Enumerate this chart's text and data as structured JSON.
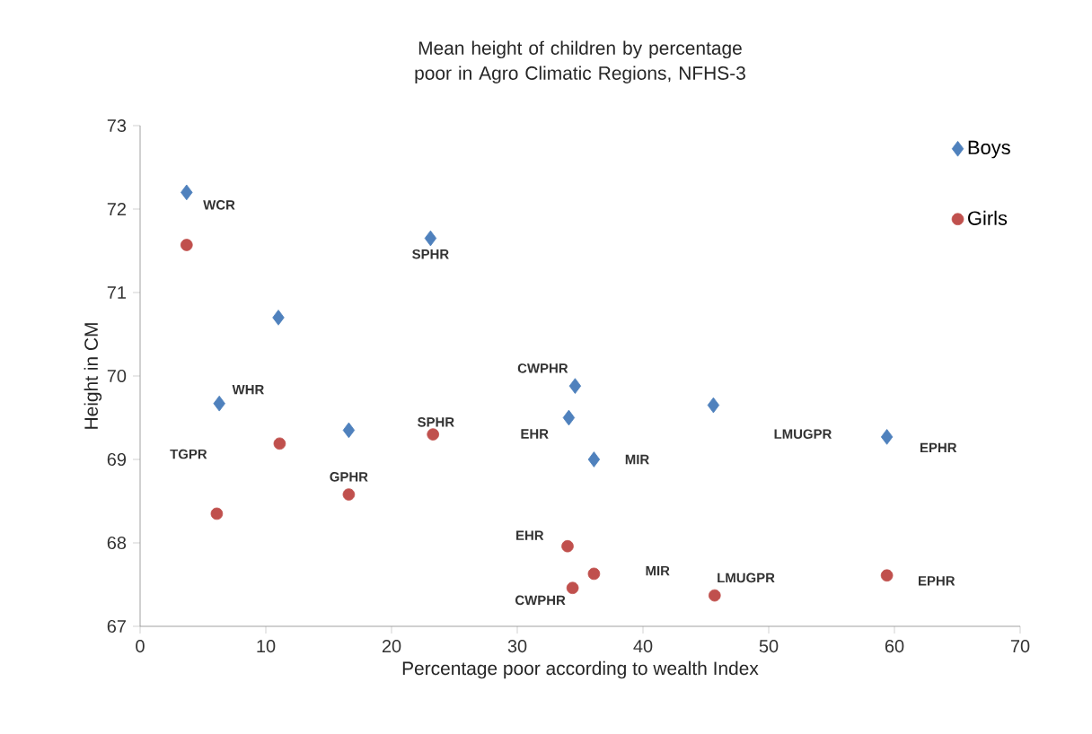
{
  "chart_data": {
    "type": "scatter",
    "title": "Mean height of children by percentage  poor in Agro Climatic Regions, NFHS-3",
    "xlabel": "Percentage poor according to  wealth Index",
    "ylabel": "Height in CM",
    "xlim": [
      0,
      70
    ],
    "xticks": [
      0,
      10,
      20,
      30,
      40,
      50,
      60,
      70
    ],
    "ylim": [
      67,
      73
    ],
    "yticks": [
      67,
      68,
      69,
      70,
      71,
      72,
      73
    ],
    "grid": false,
    "legend": "top right",
    "series": [
      {
        "name": "Boys",
        "color": "#4f81bd",
        "marker": "diamond",
        "x": [
          3.7,
          23.1,
          11.0,
          6.3,
          16.6,
          34.6,
          34.1,
          36.1,
          45.6,
          59.4
        ],
        "values": [
          72.2,
          71.65,
          70.7,
          69.67,
          69.35,
          69.88,
          69.5,
          69.0,
          69.65,
          69.27
        ]
      },
      {
        "name": "Girls",
        "color": "#c0504d",
        "marker": "circle",
        "x": [
          3.7,
          11.1,
          23.3,
          16.6,
          6.1,
          34.0,
          36.1,
          34.4,
          45.7,
          59.4
        ],
        "values": [
          71.57,
          69.19,
          69.3,
          68.58,
          68.35,
          67.96,
          67.63,
          67.46,
          67.37,
          67.61
        ]
      }
    ],
    "annotations": [
      {
        "text": "WCR",
        "x": 3.7,
        "y": 72.2
      },
      {
        "text": "SPHR",
        "x": 23.1,
        "y": 71.65
      },
      {
        "text": "WHR",
        "x": 6.3,
        "y": 69.67
      },
      "TGPR",
      {
        "text": "GPHR",
        "x": 16.6,
        "y": 68.58
      },
      {
        "text": "SPHR",
        "x": 23.3,
        "y": 69.3
      },
      {
        "text": "CWPHR",
        "x": 34.6,
        "y": 69.88
      },
      {
        "text": "EHR",
        "x": 34.1,
        "y": 69.5
      },
      {
        "text": "MIR",
        "x": 36.1,
        "y": 69.0
      },
      "LMUGPR",
      {
        "text": "EPHR",
        "x": 59.4,
        "y": 69.27
      },
      {
        "text": "EHR",
        "x": 34.0,
        "y": 67.96
      },
      "MIR",
      {
        "text": "CWPHR",
        "x": 34.4,
        "y": 67.46
      },
      {
        "text": "LMUGPR",
        "x": 45.7,
        "y": 67.37
      },
      {
        "text": "EPHR",
        "x": 59.4,
        "y": 67.61
      }
    ]
  }
}
